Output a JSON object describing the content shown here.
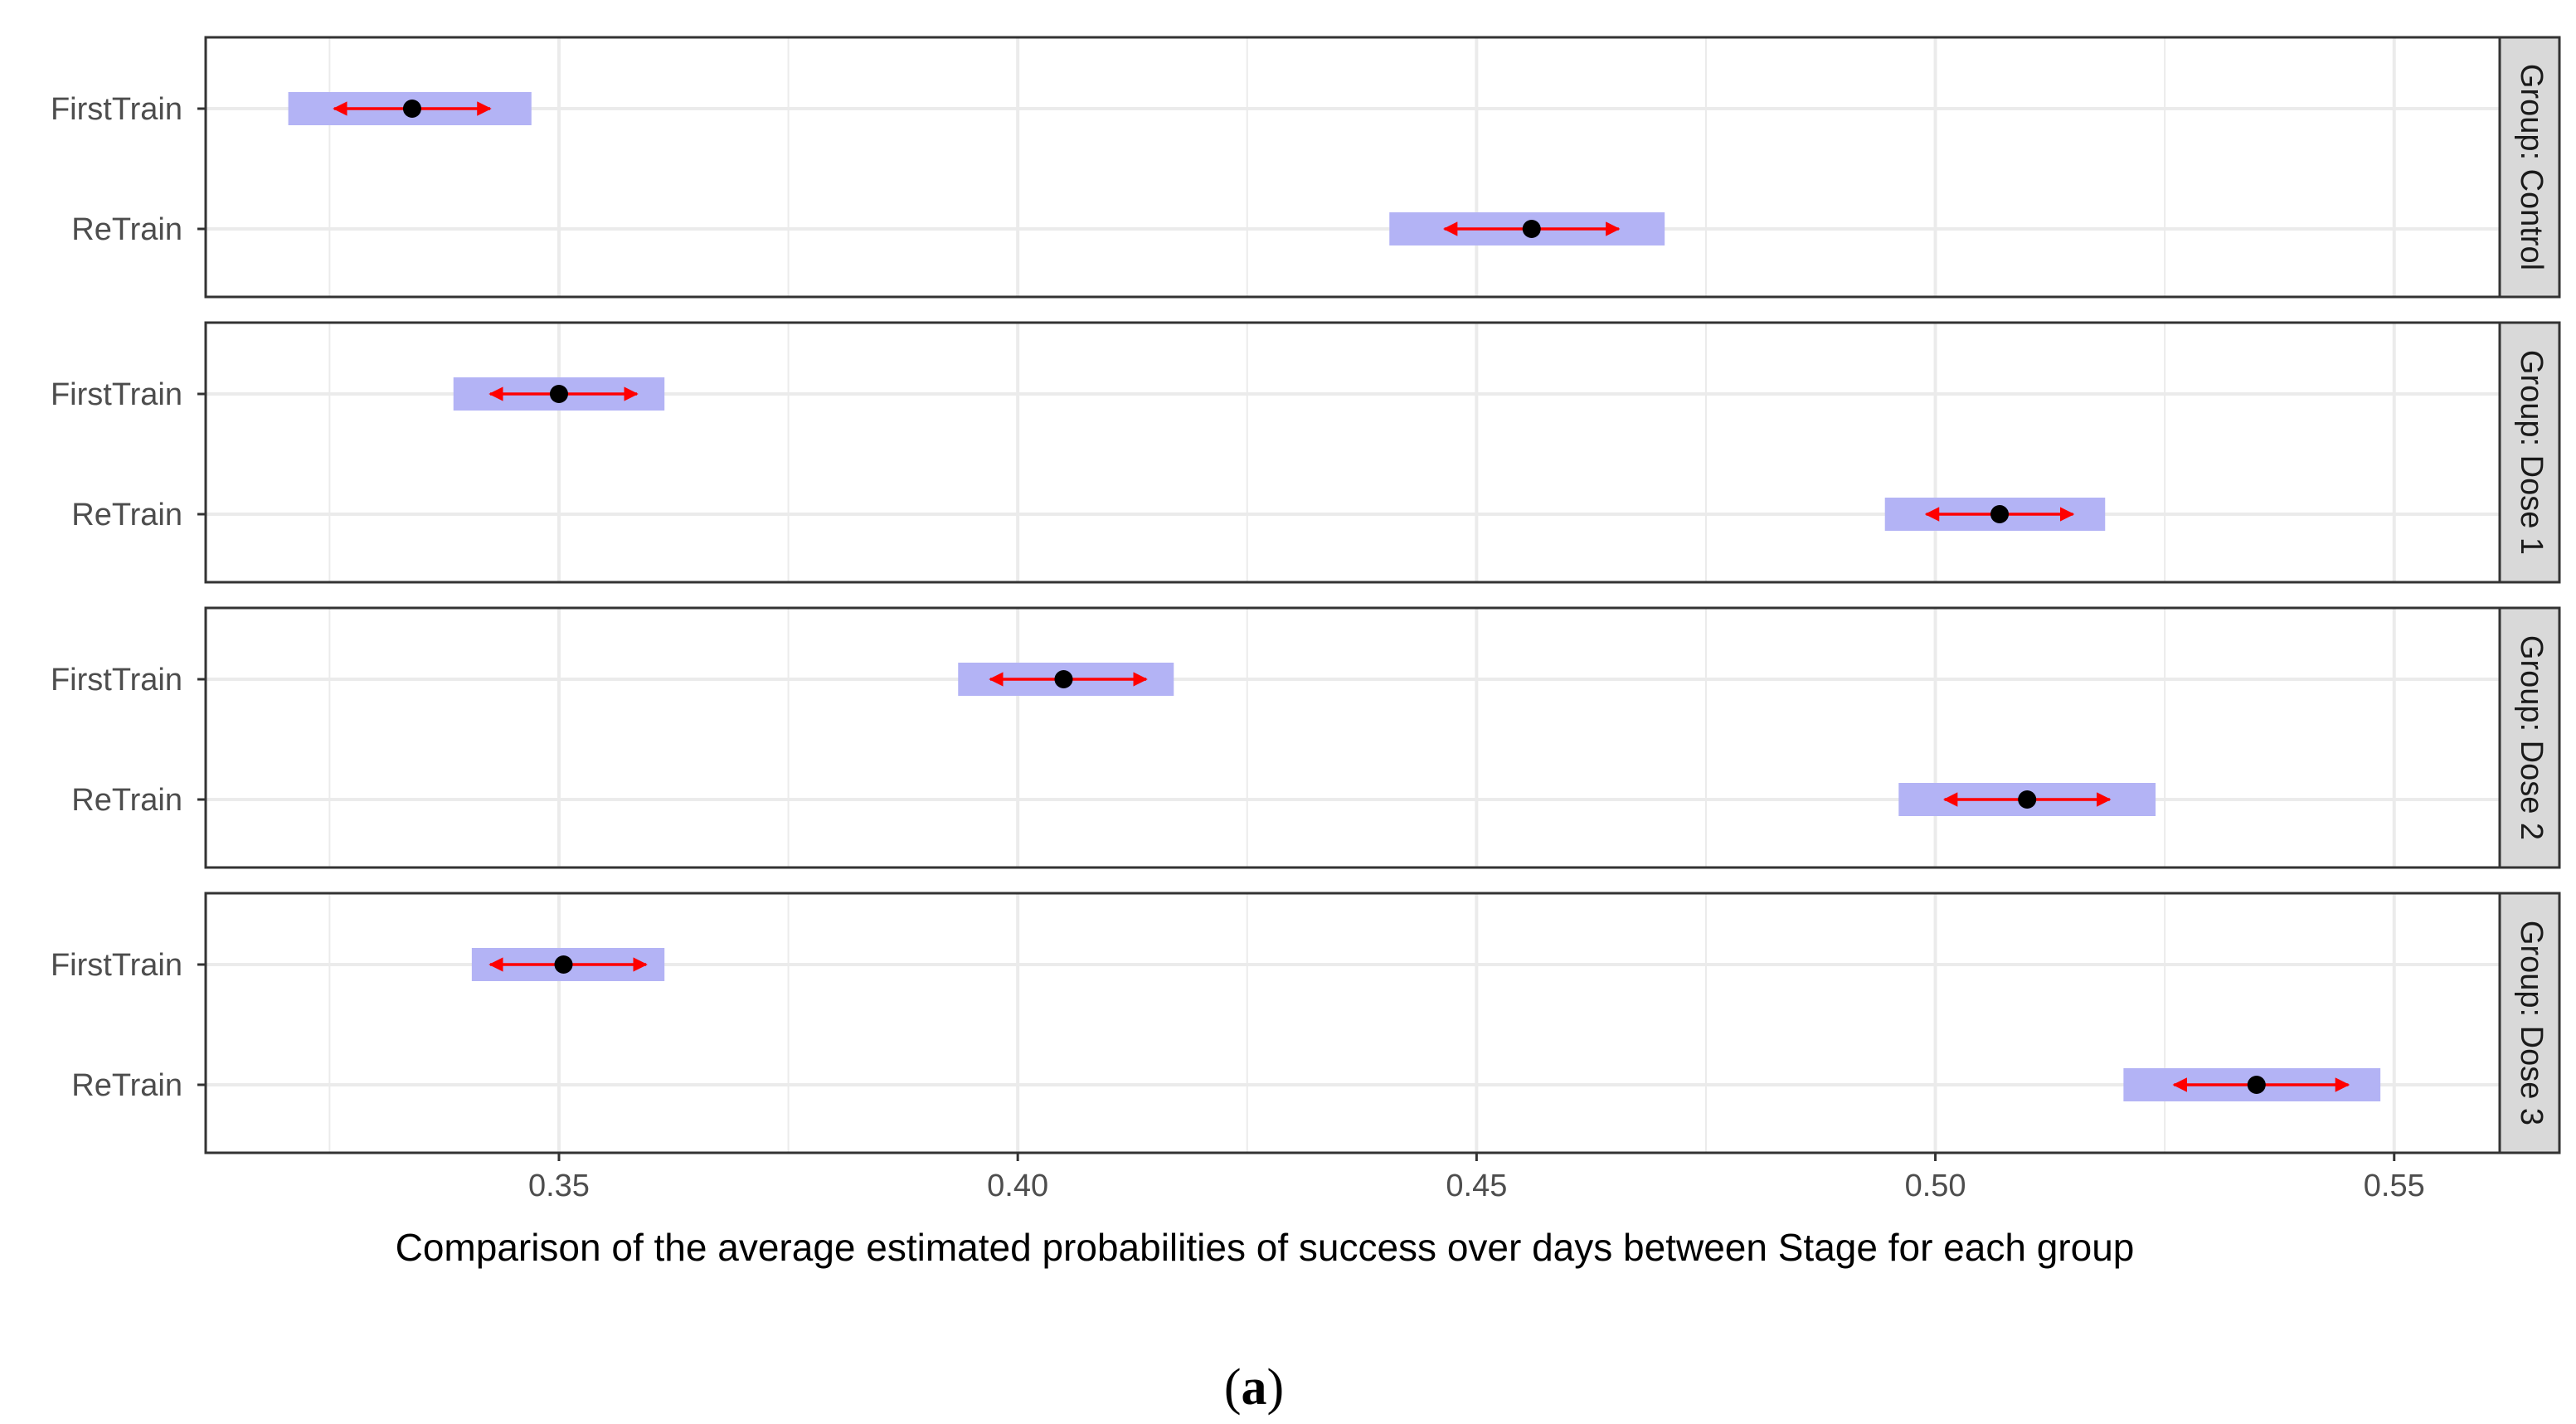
{
  "chart_data": {
    "type": "dot-interval",
    "title": "",
    "xlabel": "Comparison of the average estimated probabilities of success over days between Stage for each group",
    "ylabel": "",
    "xlim": [
      0.3115,
      0.5615
    ],
    "x_ticks": [
      0.35,
      0.4,
      0.45,
      0.5,
      0.55
    ],
    "x_tick_labels": [
      "0.35",
      "0.40",
      "0.45",
      "0.50",
      "0.55"
    ],
    "categories": [
      "FirstTrain",
      "ReTrain"
    ],
    "grid": true,
    "colors": {
      "point": "#000000",
      "arrow": "#ff0000",
      "band": "#b3b3f5",
      "grid": "#ebebeb",
      "strip_bg": "#d9d9d9",
      "border": "#333333"
    },
    "panels": [
      {
        "strip": "Group: Control",
        "rows": [
          {
            "stage": "FirstTrain",
            "estimate": 0.334,
            "band_low": 0.3205,
            "band_high": 0.347,
            "arrow_low": 0.3255,
            "arrow_high": 0.3425
          },
          {
            "stage": "ReTrain",
            "estimate": 0.456,
            "band_low": 0.4405,
            "band_high": 0.4705,
            "arrow_low": 0.4465,
            "arrow_high": 0.4655
          }
        ]
      },
      {
        "strip": "Group: Dose 1",
        "rows": [
          {
            "stage": "FirstTrain",
            "estimate": 0.35,
            "band_low": 0.3385,
            "band_high": 0.3615,
            "arrow_low": 0.3425,
            "arrow_high": 0.3585
          },
          {
            "stage": "ReTrain",
            "estimate": 0.507,
            "band_low": 0.4945,
            "band_high": 0.5185,
            "arrow_low": 0.499,
            "arrow_high": 0.515
          }
        ]
      },
      {
        "strip": "Group: Dose 2",
        "rows": [
          {
            "stage": "FirstTrain",
            "estimate": 0.405,
            "band_low": 0.3935,
            "band_high": 0.417,
            "arrow_low": 0.397,
            "arrow_high": 0.414
          },
          {
            "stage": "ReTrain",
            "estimate": 0.51,
            "band_low": 0.496,
            "band_high": 0.524,
            "arrow_low": 0.501,
            "arrow_high": 0.519
          }
        ]
      },
      {
        "strip": "Group: Dose 3",
        "rows": [
          {
            "stage": "FirstTrain",
            "estimate": 0.3505,
            "band_low": 0.3405,
            "band_high": 0.3615,
            "arrow_low": 0.3425,
            "arrow_high": 0.3595
          },
          {
            "stage": "ReTrain",
            "estimate": 0.535,
            "band_low": 0.5205,
            "band_high": 0.5485,
            "arrow_low": 0.526,
            "arrow_high": 0.545
          }
        ]
      }
    ]
  },
  "caption": {
    "open": "(",
    "letter": "a",
    "close": ")"
  }
}
